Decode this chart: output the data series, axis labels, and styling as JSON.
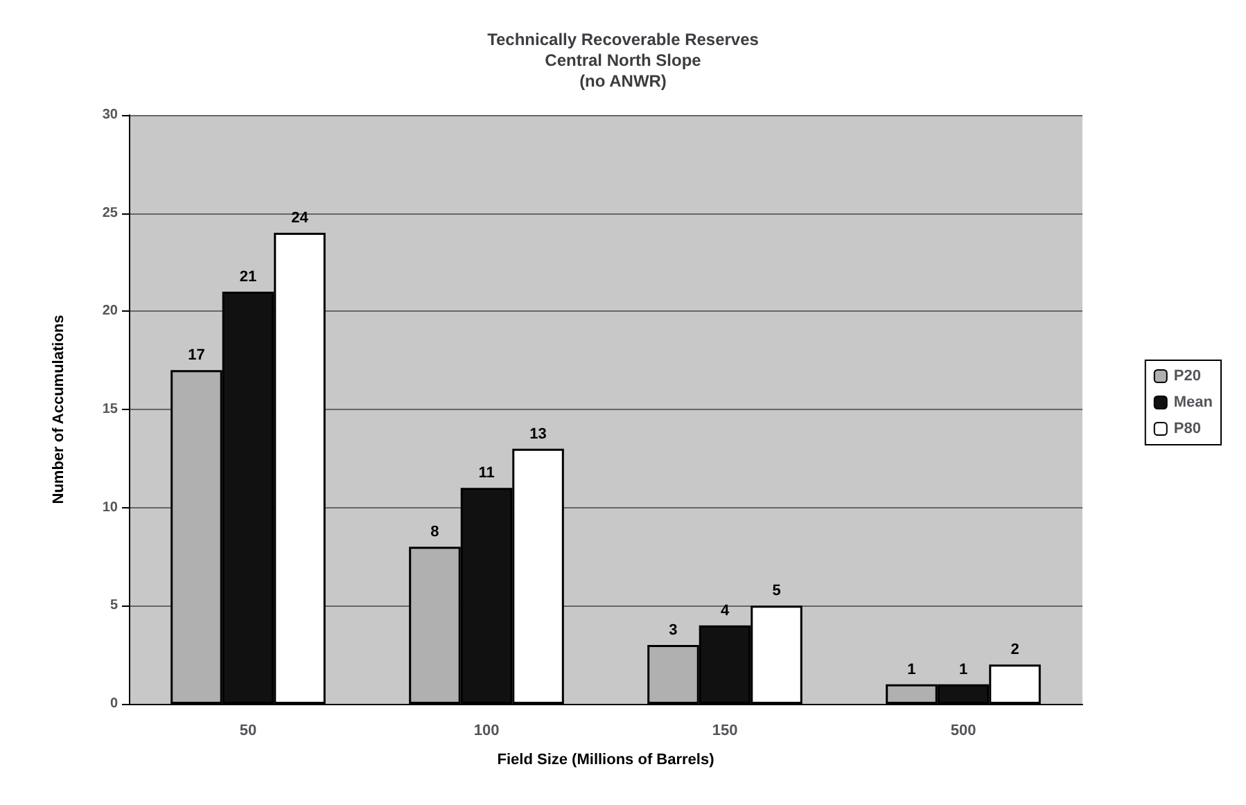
{
  "chart_data": {
    "type": "bar",
    "title": "Technically Recoverable Reserves\nCentral North Slope\n(no ANWR)",
    "xlabel": "Field Size (Millions of Barrels)",
    "ylabel": "Number of Accumulations",
    "categories": [
      "50",
      "100",
      "150",
      "500"
    ],
    "series": [
      {
        "name": "P20",
        "color": "#b0b0b0",
        "values": [
          17,
          8,
          3,
          1
        ]
      },
      {
        "name": "Mean",
        "color": "#111111",
        "values": [
          21,
          11,
          4,
          1
        ]
      },
      {
        "name": "P80",
        "color": "#ffffff",
        "values": [
          24,
          13,
          5,
          2
        ]
      }
    ],
    "ylim": [
      0,
      30
    ],
    "yticks": [
      0,
      5,
      10,
      15,
      20,
      25,
      30
    ],
    "grid": "y",
    "legend": "right",
    "data_labels": true
  }
}
